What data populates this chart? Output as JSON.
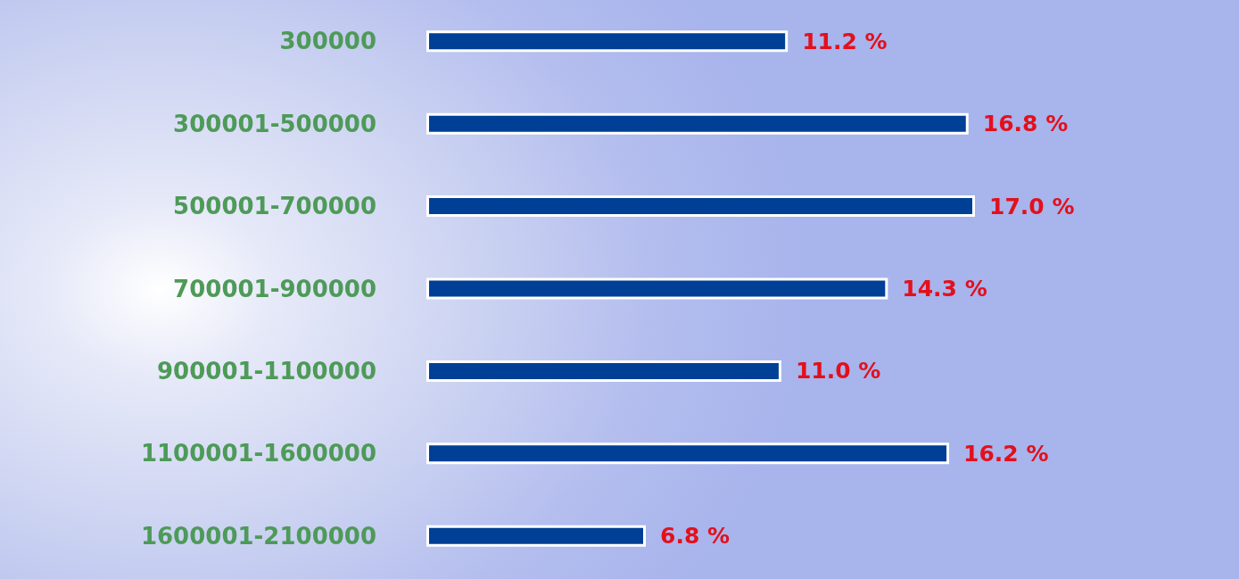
{
  "chart_data": {
    "type": "bar",
    "orientation": "horizontal",
    "categories": [
      "300000",
      "300001-500000",
      "500001-700000",
      "700001-900000",
      "900001-1100000",
      "1100001-1600000",
      "1600001-2100000"
    ],
    "values": [
      11.2,
      16.8,
      17.0,
      14.3,
      11.0,
      16.2,
      6.8
    ],
    "value_labels": [
      "11.2 %",
      "16.8 %",
      "17.0 %",
      "14.3 %",
      "11.0 %",
      "16.2 %",
      "6.8 %"
    ],
    "color": "#003f96",
    "tick_labels": "y"
  }
}
